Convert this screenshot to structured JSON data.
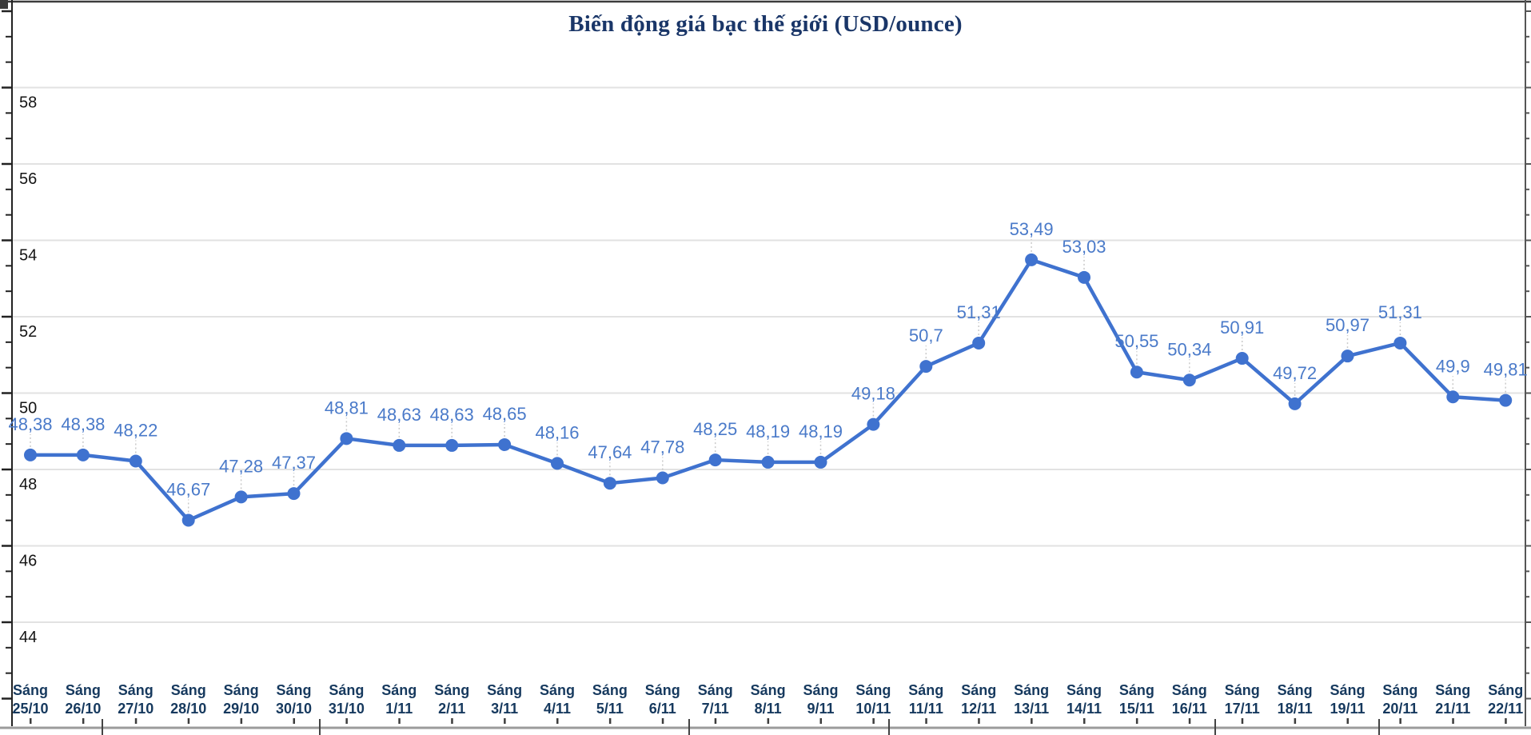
{
  "chart_data": {
    "type": "line",
    "title": "Biến động giá bạc thế giới (USD/ounce)",
    "series_name": "Giá bạc thế giới",
    "unit": "USD/ounce",
    "x_label_prefix": "Sáng",
    "categories": [
      "25/10",
      "26/10",
      "27/10",
      "28/10",
      "29/10",
      "30/10",
      "31/10",
      "1/11",
      "2/11",
      "3/11",
      "4/11",
      "5/11",
      "6/11",
      "7/11",
      "8/11",
      "9/11",
      "10/11",
      "11/11",
      "12/11",
      "13/11",
      "14/11",
      "15/11",
      "16/11",
      "17/11",
      "18/11",
      "19/11",
      "20/11",
      "21/11",
      "22/11"
    ],
    "values": [
      48.38,
      48.38,
      48.22,
      46.67,
      47.28,
      47.37,
      48.81,
      48.63,
      48.63,
      48.65,
      48.16,
      47.64,
      47.78,
      48.25,
      48.19,
      48.19,
      49.18,
      50.7,
      51.31,
      53.49,
      53.03,
      50.55,
      50.34,
      50.91,
      49.72,
      50.97,
      51.31,
      49.9,
      49.81
    ],
    "point_labels": [
      "48,38",
      "48,38",
      "48,22",
      "46,67",
      "47,28",
      "47,37",
      "48,81",
      "48,63",
      "48,63",
      "48,65",
      "48,16",
      "47,64",
      "47,78",
      "48,25",
      "48,19",
      "48,19",
      "49,18",
      "50,7",
      "51,31",
      "53,49",
      "53,03",
      "50,55",
      "50,34",
      "50,91",
      "49,72",
      "50,97",
      "51,31",
      "49,9",
      "49,81"
    ],
    "y_ticks": [
      44,
      46,
      48,
      50,
      52,
      54,
      56,
      58
    ],
    "ylim": [
      42.6,
      59.7
    ],
    "grid": "horizontal",
    "legend": "none",
    "colors": {
      "line": "#3f72cf",
      "point": "#3f72cf",
      "point_label": "#4a7ac9",
      "title": "#1a3668",
      "x_label": "#16395e",
      "y_label": "#141414",
      "grid": "#e2e2e2",
      "axis": "#3c3c3c",
      "leader": "#c9c9c9",
      "baseline": "#9b9b9b"
    }
  }
}
